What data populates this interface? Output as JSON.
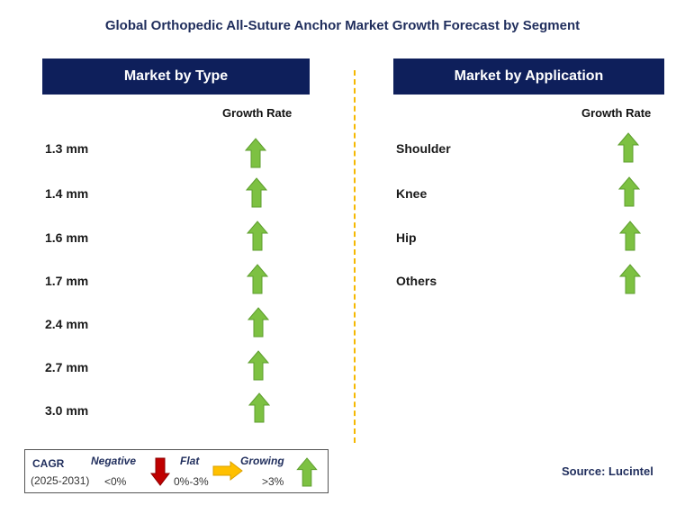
{
  "title": "Global Orthopedic All-Suture Anchor Market Growth Forecast by Segment",
  "left": {
    "header": "Market by Type",
    "column_label": "Growth Rate",
    "items": [
      {
        "label": "1.3 mm",
        "trend": "growing"
      },
      {
        "label": "1.4 mm",
        "trend": "growing"
      },
      {
        "label": "1.6 mm",
        "trend": "growing"
      },
      {
        "label": "1.7 mm",
        "trend": "growing"
      },
      {
        "label": "2.4 mm",
        "trend": "growing"
      },
      {
        "label": "2.7 mm",
        "trend": "growing"
      },
      {
        "label": "3.0 mm",
        "trend": "growing"
      }
    ]
  },
  "right": {
    "header": "Market by Application",
    "column_label": "Growth Rate",
    "items": [
      {
        "label": "Shoulder",
        "trend": "growing"
      },
      {
        "label": "Knee",
        "trend": "growing"
      },
      {
        "label": "Hip",
        "trend": "growing"
      },
      {
        "label": "Others",
        "trend": "growing"
      }
    ]
  },
  "legend": {
    "cagr_label": "CAGR",
    "period": "(2025-2031)",
    "negative": {
      "label": "Negative",
      "range": "<0%"
    },
    "flat": {
      "label": "Flat",
      "range": "0%-3%"
    },
    "growing": {
      "label": "Growing",
      "range": ">3%"
    }
  },
  "source": "Source: Lucintel",
  "colors": {
    "header_bg": "#0e1f5b",
    "growing": "#7dc142",
    "negative": "#c00000",
    "flat": "#ffc000",
    "divider": "#f5b800"
  }
}
